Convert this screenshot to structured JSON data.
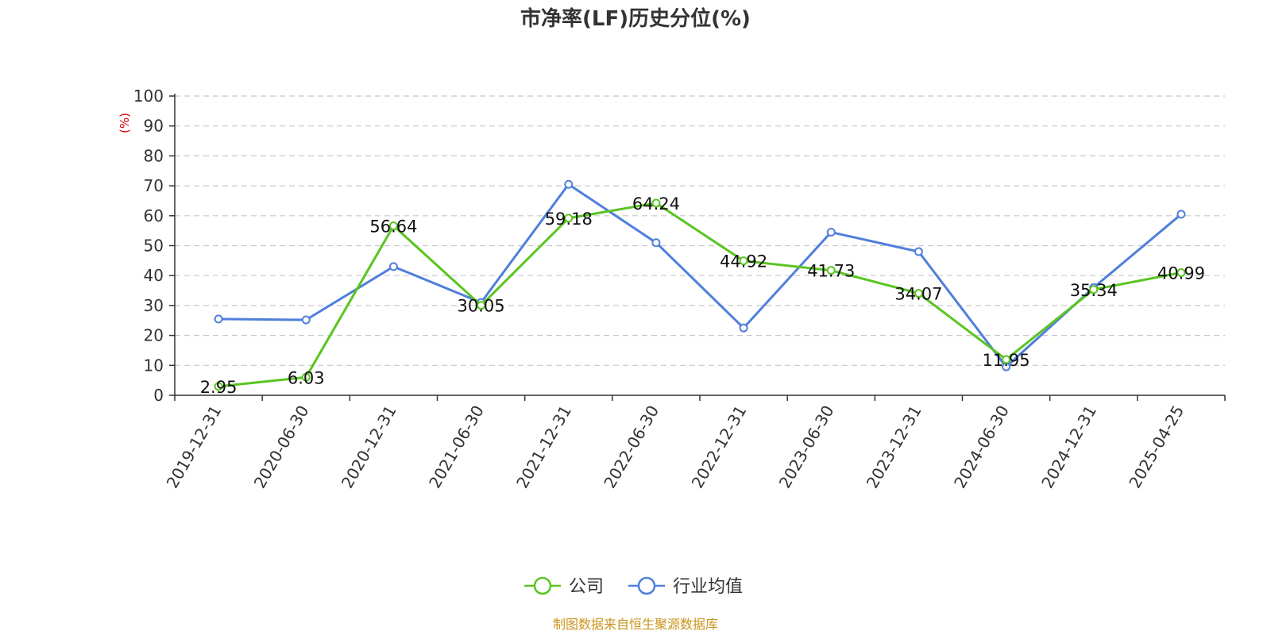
{
  "chart_data": {
    "type": "line",
    "title": "市净率(LF)历史分位(%)",
    "ylabel": "(%)",
    "ylim": [
      0,
      100
    ],
    "yticks": [
      "0",
      "10",
      "20",
      "30",
      "40",
      "50",
      "60",
      "70",
      "80",
      "90",
      "100"
    ],
    "categories": [
      "2019-12-31",
      "2020-06-30",
      "2020-12-31",
      "2021-06-30",
      "2021-12-31",
      "2022-06-30",
      "2022-12-31",
      "2023-06-30",
      "2023-12-31",
      "2024-06-30",
      "2024-12-31",
      "2025-04-25"
    ],
    "grid": true,
    "legend_position": "bottom",
    "series": [
      {
        "name": "公司",
        "color": "#5ac421",
        "values": [
          2.95,
          6.03,
          56.64,
          30.05,
          59.18,
          64.24,
          44.92,
          41.73,
          34.07,
          11.95,
          35.34,
          40.99
        ],
        "labels": [
          "2.95",
          "6.03",
          "56.64",
          "30.05",
          "59.18",
          "64.24",
          "44.92",
          "41.73",
          "34.07",
          "11.95",
          "35.34",
          "40.99"
        ]
      },
      {
        "name": "行业均值",
        "color": "#4f7fdb",
        "values": [
          25.5,
          25.2,
          43,
          31,
          70.5,
          51,
          22.5,
          54.5,
          48,
          9.5,
          36,
          60.5
        ]
      }
    ],
    "source": "制图数据来自恒生聚源数据库"
  }
}
